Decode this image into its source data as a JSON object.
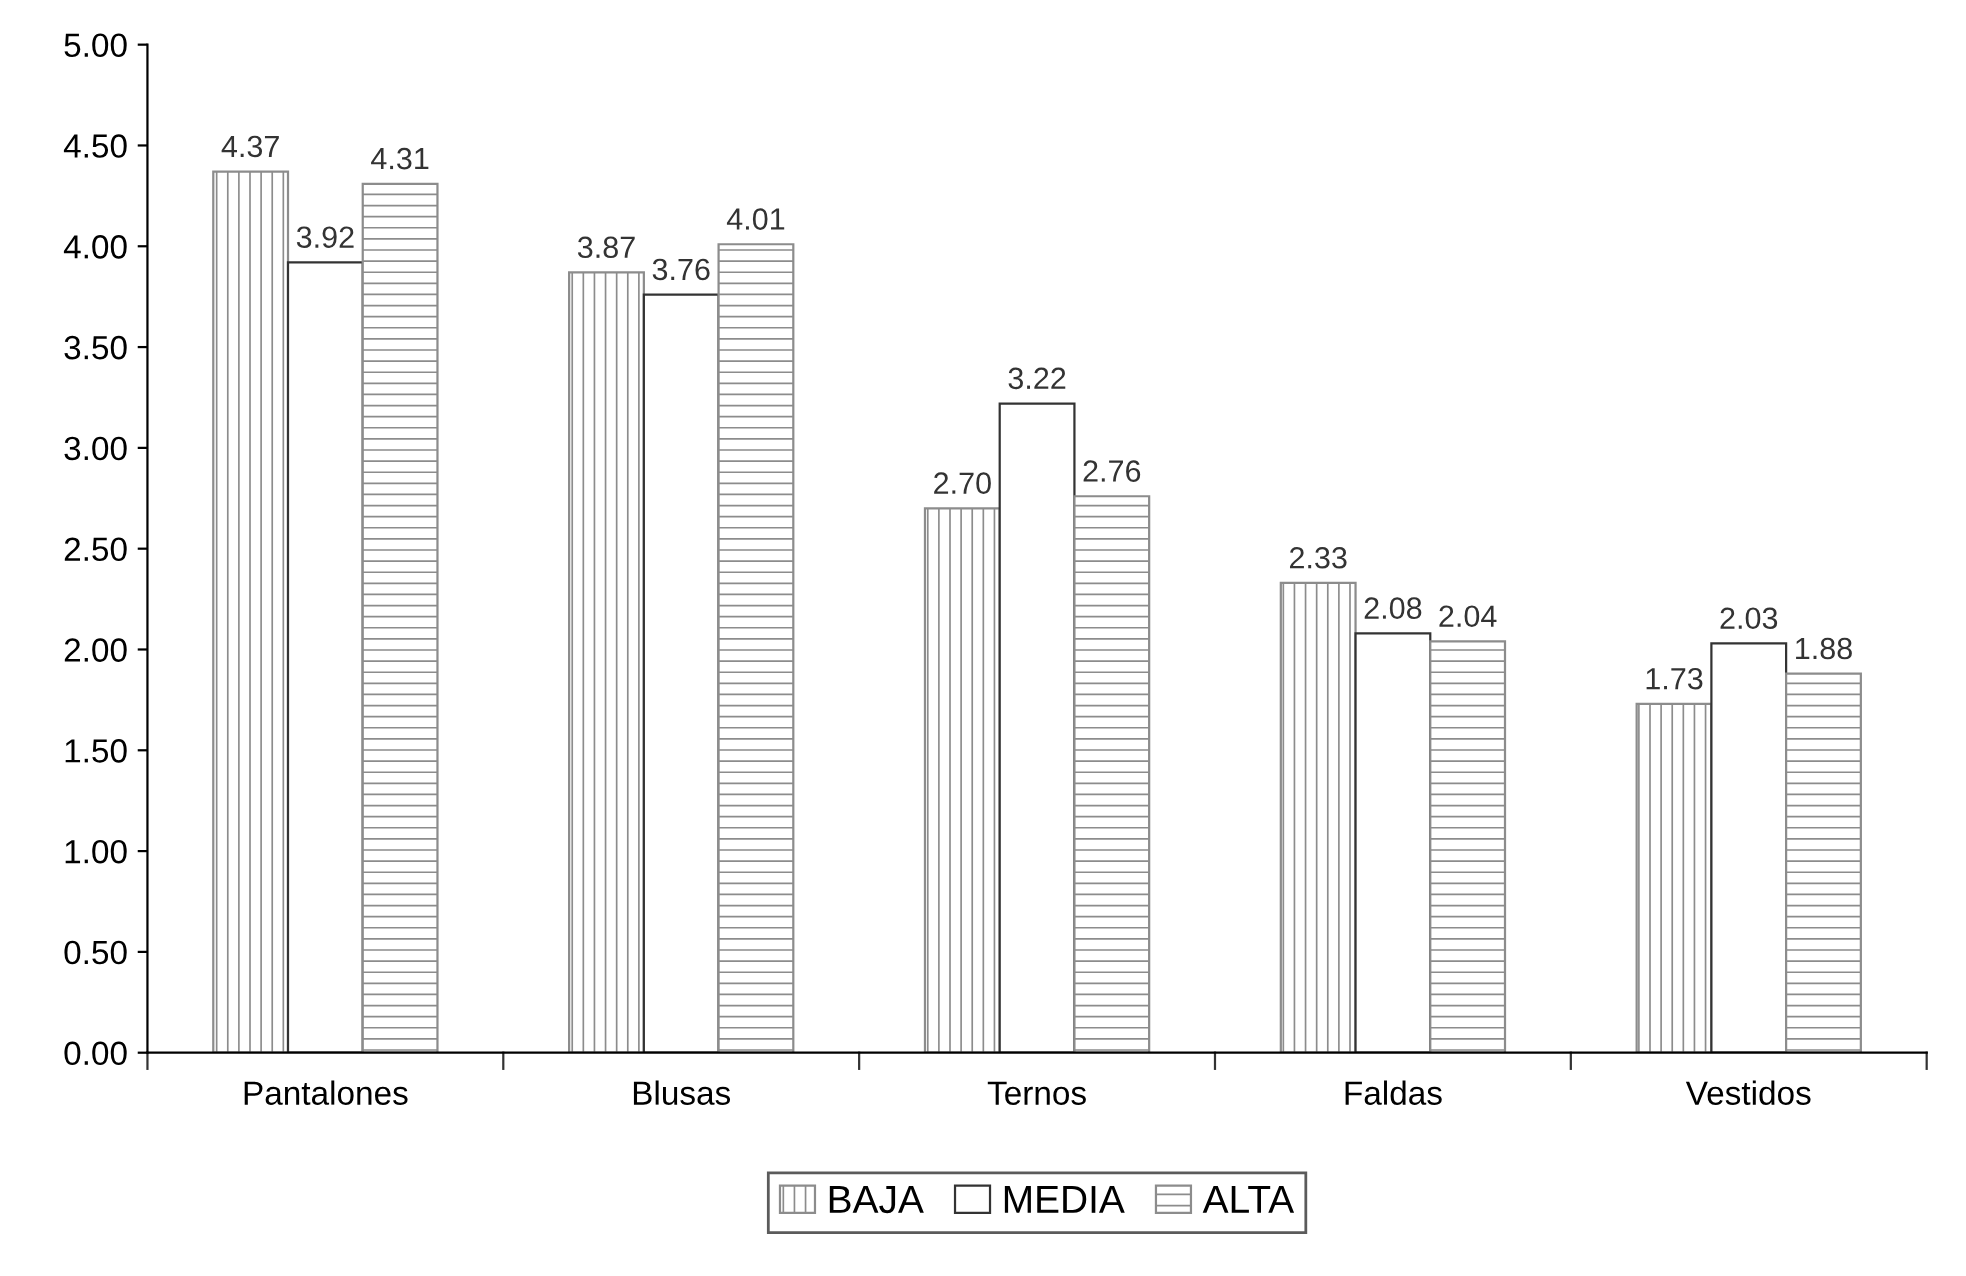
{
  "chart_data": {
    "type": "bar",
    "categories": [
      "Pantalones",
      "Blusas",
      "Ternos",
      "Faldas",
      "Vestidos"
    ],
    "series": [
      {
        "name": "BAJA",
        "color": "#8c8c8c",
        "values": [
          4.37,
          3.87,
          2.7,
          2.33,
          1.73
        ],
        "value_labels": [
          "4.37",
          "3.87",
          "2.70",
          "2.33",
          "1.73"
        ]
      },
      {
        "name": "MEDIA",
        "color": "#ffffff",
        "values": [
          3.92,
          3.76,
          3.22,
          2.08,
          2.03
        ],
        "value_labels": [
          "3.92",
          "3.76",
          "3.22",
          "2.08",
          "2.03"
        ]
      },
      {
        "name": "ALTA",
        "color": "#8c8c8c",
        "values": [
          4.31,
          4.01,
          2.76,
          2.04,
          1.88
        ],
        "value_labels": [
          "4.31",
          "4.01",
          "2.76",
          "2.04",
          "1.88"
        ]
      }
    ],
    "ylim": [
      0,
      5
    ],
    "yticks": [
      {
        "value": 0,
        "label": "0.00"
      },
      {
        "value": 0.5,
        "label": "0.50"
      },
      {
        "value": 1,
        "label": "1.00"
      },
      {
        "value": 1.5,
        "label": "1.50"
      },
      {
        "value": 2,
        "label": "2.00"
      },
      {
        "value": 2.5,
        "label": "2.50"
      },
      {
        "value": 3,
        "label": "3.00"
      },
      {
        "value": 3.5,
        "label": "3.50"
      },
      {
        "value": 4,
        "label": "4.00"
      },
      {
        "value": 4.5,
        "label": "4.50"
      },
      {
        "value": 5,
        "label": "5.00"
      }
    ],
    "grid": false,
    "legend": "bottom"
  }
}
